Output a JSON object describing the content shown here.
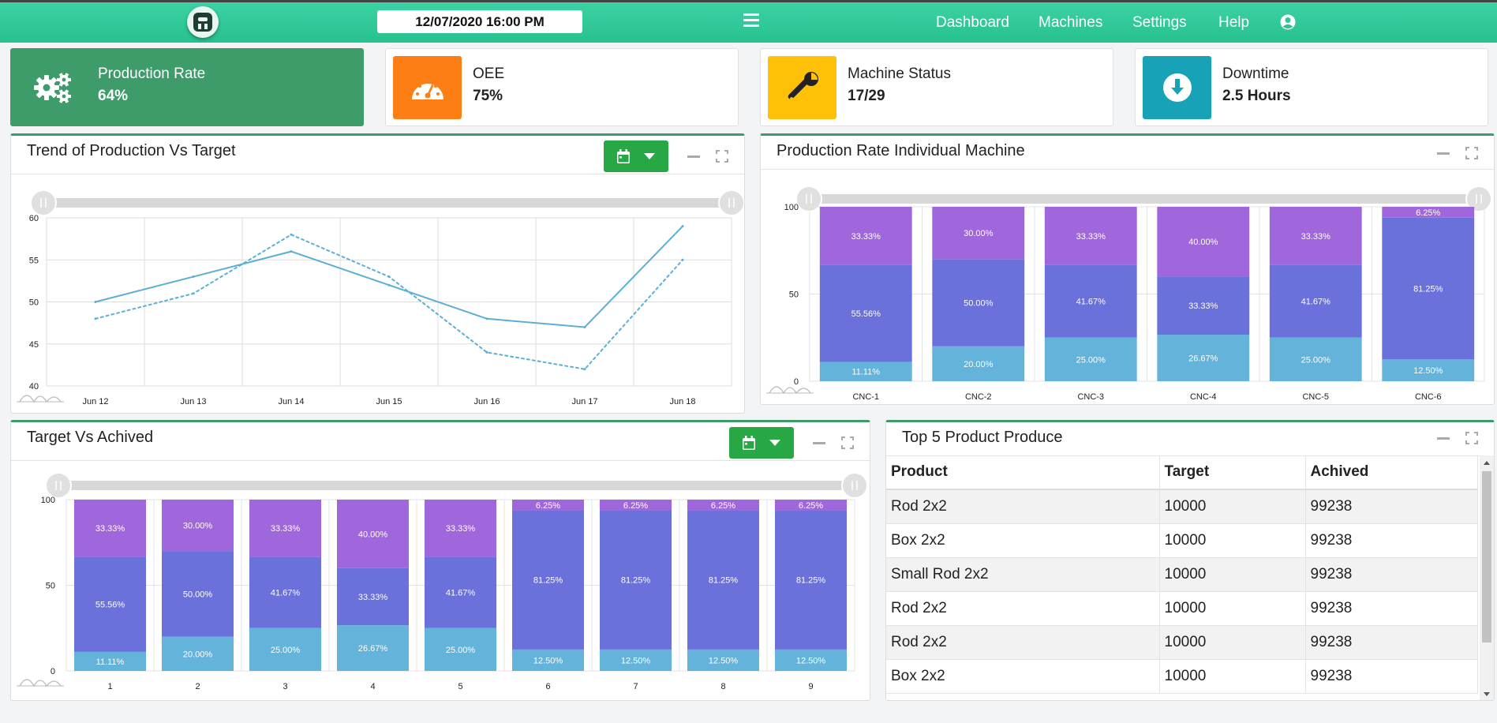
{
  "header": {
    "datetime": "12/07/2020 16:00 PM",
    "nav": [
      "Dashboard",
      "Machines",
      "Settings",
      "Help"
    ],
    "colors": {
      "bar": "#2cc594"
    }
  },
  "kpis": [
    {
      "label": "Production Rate",
      "value": "64%",
      "icon": "gears-icon",
      "color": "#3e9c6b"
    },
    {
      "label": "OEE",
      "value": "75%",
      "icon": "speedometer-icon",
      "color": "#fd7e14"
    },
    {
      "label": "Machine Status",
      "value": "17/29",
      "icon": "wrench-icon",
      "color": "#ffc107"
    },
    {
      "label": "Downtime",
      "value": "2.5 Hours",
      "icon": "download-icon",
      "color": "#17a2b8"
    }
  ],
  "panels": {
    "trend": {
      "title": "Trend of Production Vs Target"
    },
    "individual": {
      "title": "Production Rate Individual Machine"
    },
    "target": {
      "title": "Target Vs Achived"
    },
    "top5": {
      "title": "Top 5 Product Produce"
    }
  },
  "chart_data": [
    {
      "type": "line",
      "categories": [
        "Jun 12",
        "Jun 13",
        "Jun 14",
        "Jun 15",
        "Jun 16",
        "Jun 17",
        "Jun 18"
      ],
      "series": [
        {
          "values": [
            50,
            53,
            56,
            52,
            48,
            47,
            59
          ],
          "style": "solid"
        },
        {
          "values": [
            48,
            51,
            58,
            53,
            44,
            42,
            55
          ],
          "style": "dotted"
        }
      ],
      "ylim": [
        40,
        60
      ],
      "yticks": [
        40,
        45,
        50,
        55,
        60
      ],
      "grid": true,
      "colors": [
        "#5aafd6",
        "#5aafd6"
      ]
    },
    {
      "type": "bar",
      "stacked": true,
      "categories": [
        "CNC-1",
        "CNC-2",
        "CNC-3",
        "CNC-4",
        "CNC-5",
        "CNC-6"
      ],
      "series": [
        {
          "values": [
            11.11,
            20.0,
            25.0,
            26.67,
            25.0,
            12.5
          ],
          "labels": [
            "11.11%",
            "20.00%",
            "25.00%",
            "26.67%",
            "25.00%",
            "12.50%"
          ]
        },
        {
          "values": [
            55.56,
            50.0,
            41.67,
            33.33,
            41.67,
            81.25
          ],
          "labels": [
            "55.56%",
            "50.00%",
            "41.67%",
            "33.33%",
            "41.67%",
            "81.25%"
          ]
        },
        {
          "values": [
            33.33,
            30.0,
            33.33,
            40.0,
            33.33,
            6.25
          ],
          "labels": [
            "33.33%",
            "30.00%",
            "33.33%",
            "40.00%",
            "33.33%",
            "6.25%"
          ]
        }
      ],
      "ylim": [
        0,
        100
      ],
      "yticks": [
        0,
        50,
        100
      ],
      "colors": [
        "#63b3db",
        "#6a71db",
        "#a066db"
      ]
    },
    {
      "type": "bar",
      "stacked": true,
      "categories": [
        "1",
        "2",
        "3",
        "4",
        "5",
        "6",
        "7",
        "8",
        "9"
      ],
      "series": [
        {
          "values": [
            11.11,
            20.0,
            25.0,
            26.67,
            25.0,
            12.5,
            12.5,
            12.5,
            12.5
          ],
          "labels": [
            "11.11%",
            "20.00%",
            "25.00%",
            "26.67%",
            "25.00%",
            "12.50%",
            "12.50%",
            "12.50%",
            "12.50%"
          ]
        },
        {
          "values": [
            55.56,
            50.0,
            41.67,
            33.33,
            41.67,
            81.25,
            81.25,
            81.25,
            81.25
          ],
          "labels": [
            "55.56%",
            "50.00%",
            "41.67%",
            "33.33%",
            "41.67%",
            "81.25%",
            "81.25%",
            "81.25%",
            "81.25%"
          ]
        },
        {
          "values": [
            33.33,
            30.0,
            33.33,
            40.0,
            33.33,
            6.25,
            6.25,
            6.25,
            6.25
          ],
          "labels": [
            "33.33%",
            "30.00%",
            "33.33%",
            "40.00%",
            "33.33%",
            "6.25%",
            "6.25%",
            "6.25%",
            "6.25%"
          ]
        }
      ],
      "ylim": [
        0,
        100
      ],
      "yticks": [
        0,
        50,
        100
      ],
      "colors": [
        "#63b3db",
        "#6a71db",
        "#a066db"
      ]
    }
  ],
  "table": {
    "headers": [
      "Product",
      "Target",
      "Achived"
    ],
    "rows": [
      [
        "Rod 2x2",
        "10000",
        "99238"
      ],
      [
        "Box 2x2",
        "10000",
        "99238"
      ],
      [
        "Small Rod 2x2",
        "10000",
        "99238"
      ],
      [
        "Rod 2x2",
        "10000",
        "99238"
      ],
      [
        "Rod 2x2",
        "10000",
        "99238"
      ],
      [
        "Box 2x2",
        "10000",
        "99238"
      ]
    ]
  }
}
